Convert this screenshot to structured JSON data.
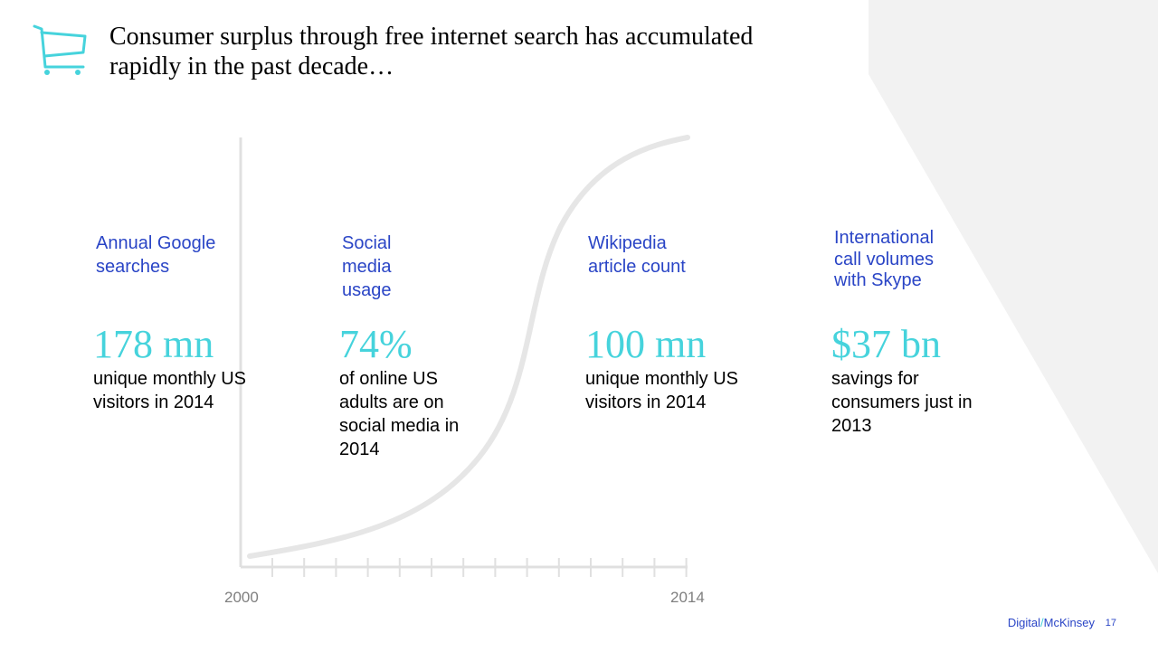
{
  "colors": {
    "accent": "#46d3dc",
    "label_blue": "#2a45c6",
    "curve_gray": "#e6e6e6",
    "axis_gray": "#e0e0e0",
    "background_shape": "#f2f2f2"
  },
  "title": "Consumer surplus through free internet search has accumulated rapidly in the past decade…",
  "icon": "shopping-cart-icon",
  "axis": {
    "start_label": "2000",
    "end_label": "2014"
  },
  "stats": [
    {
      "label": "Annual Google searches",
      "value": "178 mn",
      "description": "unique monthly US visitors in 2014"
    },
    {
      "label": "Social media usage",
      "value": "74%",
      "description": "of online US adults are on social media in 2014"
    },
    {
      "label": "Wikipedia article count",
      "value": "100 mn",
      "description": "unique monthly US visitors in 2014"
    },
    {
      "label": "International call volumes with Skype",
      "value": "$37 bn",
      "description": "savings for consumers just in 2013"
    }
  ],
  "footer": {
    "brand_left": "Digital",
    "brand_slash": "/",
    "brand_right": "McKinsey",
    "page_number": "17"
  }
}
